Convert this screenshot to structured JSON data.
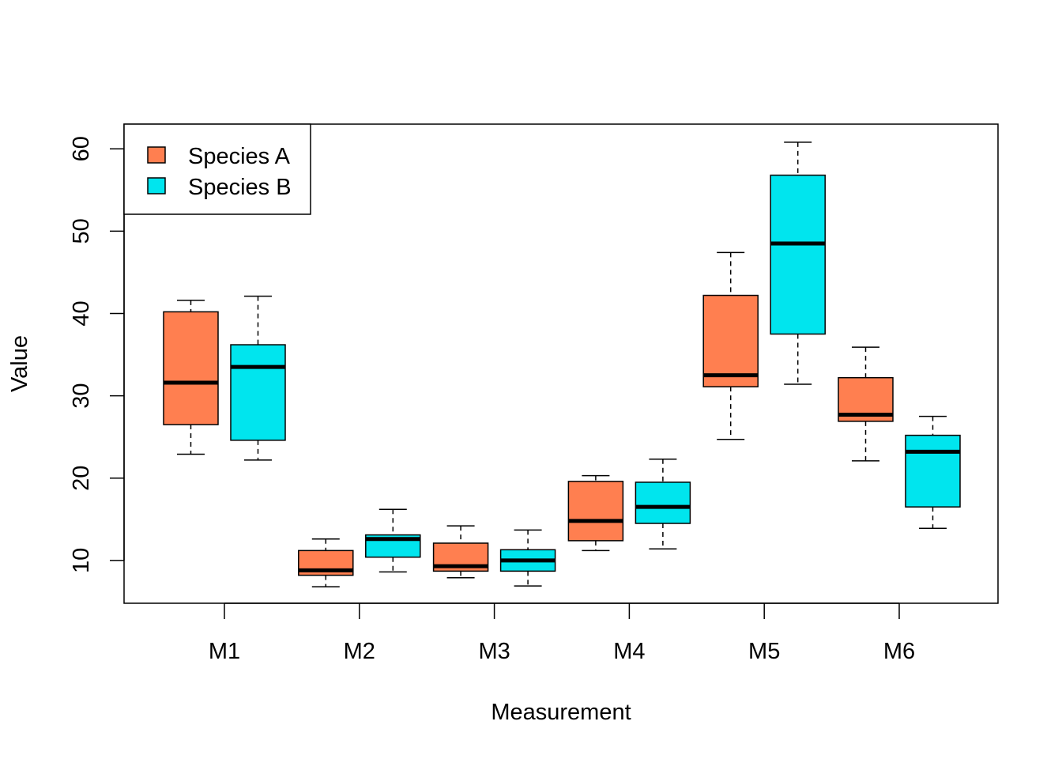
{
  "chart_data": {
    "type": "boxplot",
    "title": "",
    "xlabel": "Measurement",
    "ylabel": "Value",
    "ylim": [
      4.8,
      63
    ],
    "yticks": [
      10,
      20,
      30,
      40,
      50,
      60
    ],
    "categories": [
      "M1",
      "M2",
      "M3",
      "M4",
      "M5",
      "M6"
    ],
    "legend": {
      "position": "top-left"
    },
    "series": [
      {
        "name": "Species A",
        "color": "#FF7F50",
        "boxes": [
          {
            "min": 22.9,
            "q1": 26.5,
            "median": 31.6,
            "q3": 40.2,
            "max": 41.6
          },
          {
            "min": 6.8,
            "q1": 8.2,
            "median": 8.8,
            "q3": 11.2,
            "max": 12.6
          },
          {
            "min": 7.9,
            "q1": 8.7,
            "median": 9.3,
            "q3": 12.1,
            "max": 14.2
          },
          {
            "min": 11.2,
            "q1": 12.4,
            "median": 14.8,
            "q3": 19.6,
            "max": 20.3
          },
          {
            "min": 24.7,
            "q1": 31.1,
            "median": 32.5,
            "q3": 42.2,
            "max": 47.4
          },
          {
            "min": 22.1,
            "q1": 26.9,
            "median": 27.7,
            "q3": 32.2,
            "max": 35.9
          }
        ]
      },
      {
        "name": "Species B",
        "color": "#00E5EE",
        "boxes": [
          {
            "min": 22.2,
            "q1": 24.6,
            "median": 33.5,
            "q3": 36.2,
            "max": 42.1
          },
          {
            "min": 8.6,
            "q1": 10.4,
            "median": 12.6,
            "q3": 13.1,
            "max": 16.2
          },
          {
            "min": 6.9,
            "q1": 8.7,
            "median": 10.0,
            "q3": 11.3,
            "max": 13.7
          },
          {
            "min": 11.4,
            "q1": 14.5,
            "median": 16.5,
            "q3": 19.5,
            "max": 22.3
          },
          {
            "min": 31.4,
            "q1": 37.5,
            "median": 48.5,
            "q3": 56.8,
            "max": 60.8
          },
          {
            "min": 13.9,
            "q1": 16.5,
            "median": 23.2,
            "q3": 25.2,
            "max": 27.5
          }
        ]
      }
    ]
  }
}
